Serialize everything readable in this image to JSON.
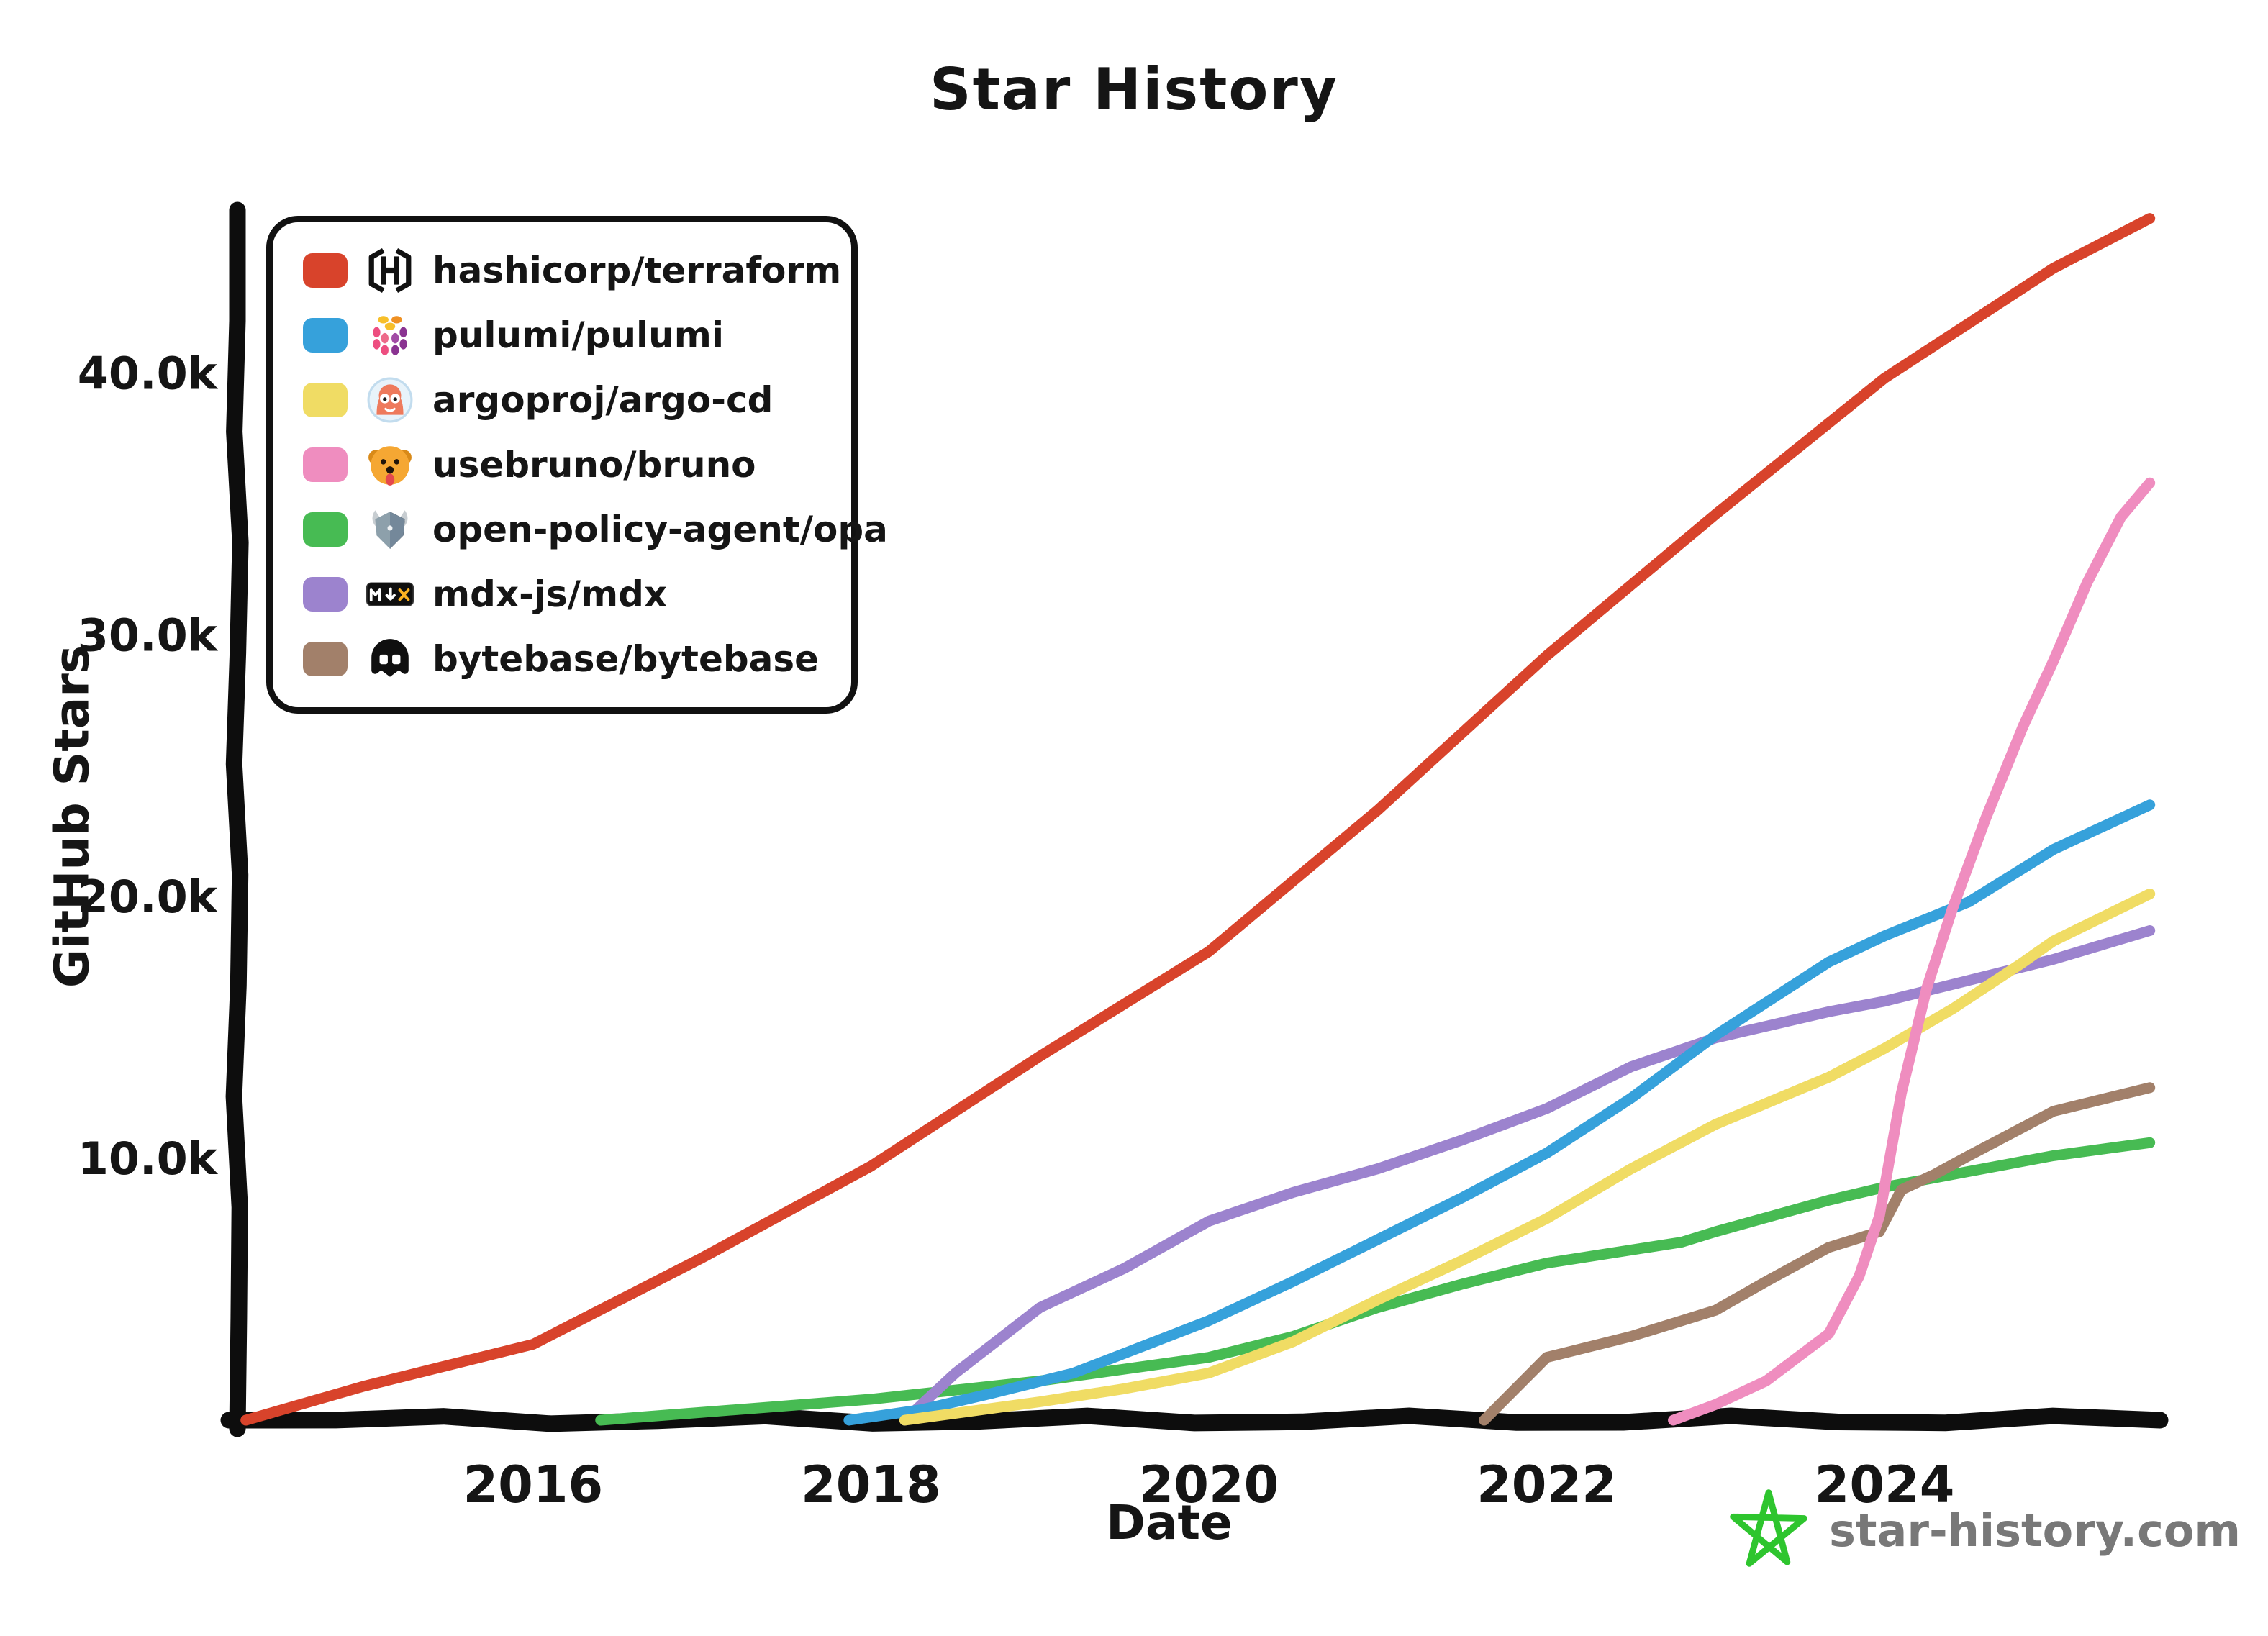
{
  "title": "Star History",
  "xlabel": "Date",
  "ylabel": "GitHub Stars",
  "footer": {
    "site": "star-history.com",
    "star_color": "#2ec52e",
    "text_color": "#787878"
  },
  "axis": {
    "x_ticks": [
      {
        "value": 2016,
        "label": "2016"
      },
      {
        "value": 2018,
        "label": "2018"
      },
      {
        "value": 2020,
        "label": "2020"
      },
      {
        "value": 2022,
        "label": "2022"
      },
      {
        "value": 2024,
        "label": "2024"
      }
    ],
    "y_ticks": [
      {
        "value": 10000,
        "label": "10.0k"
      },
      {
        "value": 20000,
        "label": "20.0k"
      },
      {
        "value": 30000,
        "label": "30.0k"
      },
      {
        "value": 40000,
        "label": "40.0k"
      }
    ],
    "x_range": [
      2014.25,
      2025.58
    ],
    "y_range": [
      0,
      46000
    ],
    "grid": false,
    "legend_position": "upper-left"
  },
  "legend": [
    {
      "label": "hashicorp/terraform",
      "color": "#d8432b",
      "icon": "hashicorp-icon"
    },
    {
      "label": "pulumi/pulumi",
      "color": "#36a1db",
      "icon": "pulumi-icon"
    },
    {
      "label": "argoproj/argo-cd",
      "color": "#f0dc64",
      "icon": "argo-icon"
    },
    {
      "label": "usebruno/bruno",
      "color": "#ef8dbf",
      "icon": "bruno-icon"
    },
    {
      "label": "open-policy-agent/opa",
      "color": "#47bb53",
      "icon": "opa-icon"
    },
    {
      "label": "mdx-js/mdx",
      "color": "#9c83ce",
      "icon": "mdx-icon"
    },
    {
      "label": "bytebase/bytebase",
      "color": "#a2806a",
      "icon": "bytebase-icon"
    }
  ],
  "chart_data": {
    "type": "line",
    "title": "Star History",
    "xlabel": "Date",
    "ylabel": "GitHub Stars",
    "x_unit": "decimal_year",
    "y_unit": "stars",
    "series": [
      {
        "name": "hashicorp/terraform",
        "color": "#d8432b",
        "points": [
          [
            2014.3,
            0
          ],
          [
            2015,
            1300
          ],
          [
            2016,
            2900
          ],
          [
            2017,
            6200
          ],
          [
            2018,
            9700
          ],
          [
            2019,
            13900
          ],
          [
            2020,
            17900
          ],
          [
            2021,
            23300
          ],
          [
            2022,
            29200
          ],
          [
            2023,
            34600
          ],
          [
            2024,
            39800
          ],
          [
            2025,
            44000
          ],
          [
            2025.57,
            45900
          ]
        ]
      },
      {
        "name": "pulumi/pulumi",
        "color": "#36a1db",
        "points": [
          [
            2017.87,
            0
          ],
          [
            2018.3,
            400
          ],
          [
            2018.7,
            1000
          ],
          [
            2019.2,
            1800
          ],
          [
            2020,
            3800
          ],
          [
            2020.5,
            5300
          ],
          [
            2021,
            6900
          ],
          [
            2021.5,
            8500
          ],
          [
            2022,
            10200
          ],
          [
            2022.5,
            12300
          ],
          [
            2023,
            14700
          ],
          [
            2023.67,
            17500
          ],
          [
            2024,
            18500
          ],
          [
            2024.5,
            19800
          ],
          [
            2025,
            21800
          ],
          [
            2025.57,
            23500
          ]
        ]
      },
      {
        "name": "argoproj/argo-cd",
        "color": "#f0dc64",
        "points": [
          [
            2018.2,
            0
          ],
          [
            2019,
            700
          ],
          [
            2019.5,
            1200
          ],
          [
            2020,
            1800
          ],
          [
            2020.5,
            3000
          ],
          [
            2021,
            4600
          ],
          [
            2021.5,
            6100
          ],
          [
            2022,
            7700
          ],
          [
            2022.5,
            9600
          ],
          [
            2023,
            11300
          ],
          [
            2023.67,
            13100
          ],
          [
            2024,
            14200
          ],
          [
            2024.4,
            15700
          ],
          [
            2024.8,
            17400
          ],
          [
            2025,
            18300
          ],
          [
            2025.57,
            20100
          ]
        ]
      },
      {
        "name": "usebruno/bruno",
        "color": "#ef8dbf",
        "points": [
          [
            2022.75,
            0
          ],
          [
            2023,
            600
          ],
          [
            2023.3,
            1500
          ],
          [
            2023.67,
            3300
          ],
          [
            2023.85,
            5500
          ],
          [
            2023.97,
            7800
          ],
          [
            2024.1,
            12500
          ],
          [
            2024.25,
            16500
          ],
          [
            2024.4,
            19500
          ],
          [
            2024.6,
            23000
          ],
          [
            2024.82,
            26500
          ],
          [
            2025,
            29000
          ],
          [
            2025.2,
            32000
          ],
          [
            2025.4,
            34500
          ],
          [
            2025.57,
            35800
          ]
        ]
      },
      {
        "name": "open-policy-agent/opa",
        "color": "#47bb53",
        "points": [
          [
            2016.4,
            0
          ],
          [
            2017,
            300
          ],
          [
            2018,
            800
          ],
          [
            2019,
            1500
          ],
          [
            2020,
            2400
          ],
          [
            2020.5,
            3200
          ],
          [
            2021,
            4300
          ],
          [
            2021.5,
            5200
          ],
          [
            2022,
            6000
          ],
          [
            2022.8,
            6800
          ],
          [
            2023,
            7200
          ],
          [
            2023.67,
            8400
          ],
          [
            2024,
            8900
          ],
          [
            2024.5,
            9500
          ],
          [
            2025,
            10100
          ],
          [
            2025.57,
            10600
          ]
        ]
      },
      {
        "name": "mdx-js/mdx",
        "color": "#9c83ce",
        "points": [
          [
            2018.2,
            0
          ],
          [
            2018.5,
            1800
          ],
          [
            2019,
            4300
          ],
          [
            2019.5,
            5800
          ],
          [
            2020,
            7600
          ],
          [
            2020.5,
            8700
          ],
          [
            2021,
            9600
          ],
          [
            2021.5,
            10700
          ],
          [
            2022,
            11900
          ],
          [
            2022.5,
            13500
          ],
          [
            2023,
            14600
          ],
          [
            2023.67,
            15600
          ],
          [
            2024,
            16000
          ],
          [
            2024.5,
            16800
          ],
          [
            2025,
            17600
          ],
          [
            2025.57,
            18700
          ]
        ]
      },
      {
        "name": "bytebase/bytebase",
        "color": "#a2806a",
        "points": [
          [
            2021.63,
            0
          ],
          [
            2022,
            2400
          ],
          [
            2022.5,
            3200
          ],
          [
            2023,
            4200
          ],
          [
            2023.3,
            5300
          ],
          [
            2023.67,
            6600
          ],
          [
            2023.97,
            7200
          ],
          [
            2024.1,
            8800
          ],
          [
            2024.3,
            9400
          ],
          [
            2024.5,
            10100
          ],
          [
            2025,
            11800
          ],
          [
            2025.57,
            12700
          ]
        ]
      }
    ]
  }
}
